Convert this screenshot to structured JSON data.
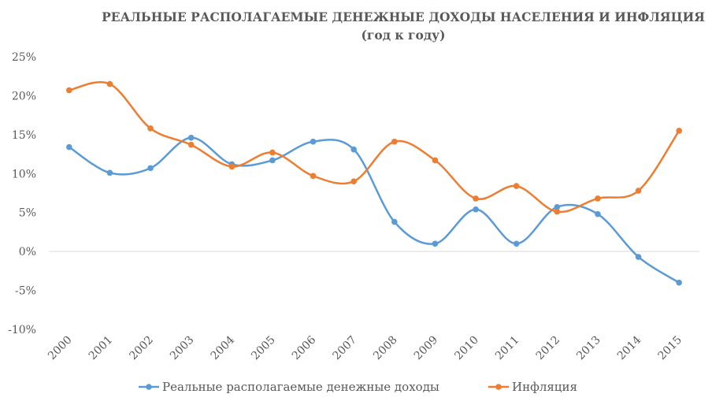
{
  "chart_data": {
    "type": "line",
    "title": "РЕАЛЬНЫЕ РАСПОЛАГАЕМЫЕ ДЕНЕЖНЫЕ ДОХОДЫ НАСЕЛЕНИЯ И ИНФЛЯЦИЯ",
    "subtitle": "(год к году)",
    "categories": [
      "2000",
      "2001",
      "2002",
      "2003",
      "2004",
      "2005",
      "2006",
      "2007",
      "2008",
      "2009",
      "2010",
      "2011",
      "2012",
      "2013",
      "2014",
      "2015"
    ],
    "y_ticks": [
      {
        "value": 25,
        "label": "25%"
      },
      {
        "value": 20,
        "label": "20%"
      },
      {
        "value": 15,
        "label": "15%"
      },
      {
        "value": 10,
        "label": "10%"
      },
      {
        "value": 5,
        "label": "5%"
      },
      {
        "value": 0,
        "label": "0%"
      },
      {
        "value": -5,
        "label": "-5%"
      },
      {
        "value": -10,
        "label": "-10%"
      }
    ],
    "ylim": [
      -10,
      25
    ],
    "grid": false,
    "legend_position": "bottom",
    "series": [
      {
        "name": "Реальные располагаемые денежные доходы",
        "color": "#5b9bd5",
        "values": [
          13.4,
          10.1,
          10.7,
          14.6,
          11.2,
          11.7,
          14.1,
          13.1,
          3.8,
          1.0,
          5.4,
          1.0,
          5.7,
          4.8,
          -0.7,
          -4.0
        ]
      },
      {
        "name": "Инфляция",
        "color": "#ed7d31",
        "values": [
          20.7,
          21.5,
          15.8,
          13.7,
          10.9,
          12.7,
          9.7,
          9.0,
          14.1,
          11.7,
          6.8,
          8.4,
          5.1,
          6.8,
          7.8,
          15.5
        ]
      }
    ]
  }
}
